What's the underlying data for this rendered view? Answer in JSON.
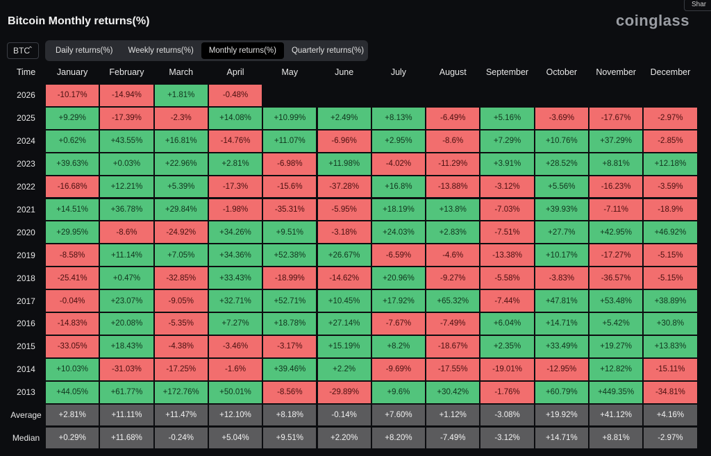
{
  "header": {
    "title": "Bitcoin Monthly returns(%)",
    "brand": "coinglass",
    "share": "Shar"
  },
  "controls": {
    "coin": "BTC",
    "tabs": [
      "Daily returns(%)",
      "Weekly returns(%)",
      "Monthly returns(%)",
      "Quarterly returns(%)"
    ]
  },
  "table": {
    "columns": [
      "Time",
      "January",
      "February",
      "March",
      "April",
      "May",
      "June",
      "July",
      "August",
      "September",
      "October",
      "November",
      "December"
    ],
    "rows": [
      {
        "label": "2026",
        "cells": [
          "-10.17%",
          "-14.94%",
          "+1.81%",
          "-0.48%"
        ]
      },
      {
        "label": "2025",
        "cells": [
          "+9.29%",
          "-17.39%",
          "-2.3%",
          "+14.08%",
          "+10.99%",
          "+2.49%",
          "+8.13%",
          "-6.49%",
          "+5.16%",
          "-3.69%",
          "-17.67%",
          "-2.97%"
        ]
      },
      {
        "label": "2024",
        "cells": [
          "+0.62%",
          "+43.55%",
          "+16.81%",
          "-14.76%",
          "+11.07%",
          "-6.96%",
          "+2.95%",
          "-8.6%",
          "+7.29%",
          "+10.76%",
          "+37.29%",
          "-2.85%"
        ]
      },
      {
        "label": "2023",
        "cells": [
          "+39.63%",
          "+0.03%",
          "+22.96%",
          "+2.81%",
          "-6.98%",
          "+11.98%",
          "-4.02%",
          "-11.29%",
          "+3.91%",
          "+28.52%",
          "+8.81%",
          "+12.18%"
        ]
      },
      {
        "label": "2022",
        "cells": [
          "-16.68%",
          "+12.21%",
          "+5.39%",
          "-17.3%",
          "-15.6%",
          "-37.28%",
          "+16.8%",
          "-13.88%",
          "-3.12%",
          "+5.56%",
          "-16.23%",
          "-3.59%"
        ]
      },
      {
        "label": "2021",
        "cells": [
          "+14.51%",
          "+36.78%",
          "+29.84%",
          "-1.98%",
          "-35.31%",
          "-5.95%",
          "+18.19%",
          "+13.8%",
          "-7.03%",
          "+39.93%",
          "-7.11%",
          "-18.9%"
        ]
      },
      {
        "label": "2020",
        "cells": [
          "+29.95%",
          "-8.6%",
          "-24.92%",
          "+34.26%",
          "+9.51%",
          "-3.18%",
          "+24.03%",
          "+2.83%",
          "-7.51%",
          "+27.7%",
          "+42.95%",
          "+46.92%"
        ]
      },
      {
        "label": "2019",
        "cells": [
          "-8.58%",
          "+11.14%",
          "+7.05%",
          "+34.36%",
          "+52.38%",
          "+26.67%",
          "-6.59%",
          "-4.6%",
          "-13.38%",
          "+10.17%",
          "-17.27%",
          "-5.15%"
        ]
      },
      {
        "label": "2018",
        "cells": [
          "-25.41%",
          "+0.47%",
          "-32.85%",
          "+33.43%",
          "-18.99%",
          "-14.62%",
          "+20.96%",
          "-9.27%",
          "-5.58%",
          "-3.83%",
          "-36.57%",
          "-5.15%"
        ]
      },
      {
        "label": "2017",
        "cells": [
          "-0.04%",
          "+23.07%",
          "-9.05%",
          "+32.71%",
          "+52.71%",
          "+10.45%",
          "+17.92%",
          "+65.32%",
          "-7.44%",
          "+47.81%",
          "+53.48%",
          "+38.89%"
        ]
      },
      {
        "label": "2016",
        "cells": [
          "-14.83%",
          "+20.08%",
          "-5.35%",
          "+7.27%",
          "+18.78%",
          "+27.14%",
          "-7.67%",
          "-7.49%",
          "+6.04%",
          "+14.71%",
          "+5.42%",
          "+30.8%"
        ]
      },
      {
        "label": "2015",
        "cells": [
          "-33.05%",
          "+18.43%",
          "-4.38%",
          "-3.46%",
          "-3.17%",
          "+15.19%",
          "+8.2%",
          "-18.67%",
          "+2.35%",
          "+33.49%",
          "+19.27%",
          "+13.83%"
        ]
      },
      {
        "label": "2014",
        "cells": [
          "+10.03%",
          "-31.03%",
          "-17.25%",
          "-1.6%",
          "+39.46%",
          "+2.2%",
          "-9.69%",
          "-17.55%",
          "-19.01%",
          "-12.95%",
          "+12.82%",
          "-15.11%"
        ]
      },
      {
        "label": "2013",
        "cells": [
          "+44.05%",
          "+61.77%",
          "+172.76%",
          "+50.01%",
          "-8.56%",
          "-29.89%",
          "+9.6%",
          "+30.42%",
          "-1.76%",
          "+60.79%",
          "+449.35%",
          "-34.81%"
        ]
      }
    ],
    "summary": [
      {
        "label": "Average",
        "cells": [
          "+2.81%",
          "+11.11%",
          "+11.47%",
          "+12.10%",
          "+8.18%",
          "-0.14%",
          "+7.60%",
          "+1.12%",
          "-3.08%",
          "+19.92%",
          "+41.12%",
          "+4.16%"
        ]
      },
      {
        "label": "Median",
        "cells": [
          "+0.29%",
          "+11.68%",
          "-0.24%",
          "+5.04%",
          "+9.51%",
          "+2.20%",
          "+8.20%",
          "-7.49%",
          "-3.12%",
          "+14.71%",
          "+8.81%",
          "-2.97%"
        ]
      }
    ]
  }
}
